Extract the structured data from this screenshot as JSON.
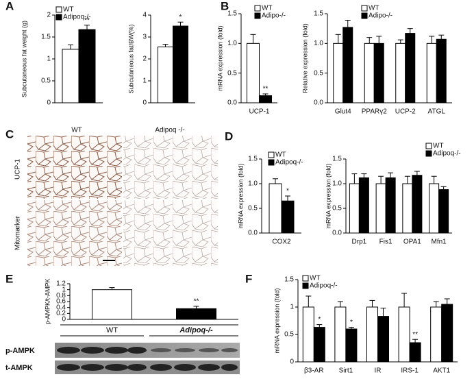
{
  "chart_data": [
    {
      "type": "bar",
      "panel_label": "A",
      "ylabel": "Subcutaneous fat weight (g)",
      "categories": [
        null
      ],
      "series": [
        {
          "name": "WT",
          "color": "#ffffff",
          "values": [
            1.22
          ],
          "errors": [
            0.1
          ]
        },
        {
          "name": "Adipoq-/-",
          "color": "#000000",
          "values": [
            1.67
          ],
          "errors": [
            0.1
          ]
        }
      ],
      "significance": [
        "**"
      ],
      "ylim": [
        0,
        2
      ],
      "yticks": [
        0,
        0.5,
        1,
        1.5,
        2
      ]
    },
    {
      "type": "bar",
      "ylabel": "Subcutaneous fat/BW(%)",
      "categories": [
        null
      ],
      "series": [
        {
          "color": "#ffffff",
          "values": [
            2.55
          ],
          "errors": [
            0.12
          ]
        },
        {
          "color": "#000000",
          "values": [
            3.5
          ],
          "errors": [
            0.18
          ]
        }
      ],
      "significance": [
        "*"
      ],
      "ylim": [
        0,
        4
      ],
      "yticks": [
        0,
        1,
        2,
        3,
        4
      ]
    },
    {
      "type": "bar",
      "panel_label": "B",
      "ylabel": "mRNA expression (fold)",
      "categories": [
        "UCP-1"
      ],
      "series": [
        {
          "name": "WT",
          "color": "#ffffff",
          "values": [
            1.0
          ],
          "errors": [
            0.15
          ]
        },
        {
          "name": "Adipo-/-",
          "color": "#000000",
          "values": [
            0.12
          ],
          "errors": [
            0.03
          ]
        }
      ],
      "significance": [
        "**"
      ],
      "ylim": [
        0,
        1.5
      ],
      "yticks": [
        {
          "value": 0,
          "label": "0.0"
        },
        {
          "value": 0.5,
          "label": "0.5"
        },
        {
          "value": 1,
          "label": "1.0"
        },
        {
          "value": 1.5,
          "label": "1.5"
        }
      ]
    },
    {
      "type": "bar",
      "ylabel": "Relative expression (fold)",
      "categories": [
        "Glut4",
        "PPARγ2",
        "UCP-2",
        "ATGL"
      ],
      "series": [
        {
          "name": "WT",
          "color": "#ffffff",
          "values": [
            1,
            1,
            1,
            1
          ],
          "errors": [
            0.15,
            0.1,
            0.06,
            0.12
          ]
        },
        {
          "name": "Adipo-/-",
          "color": "#000000",
          "values": [
            1.27,
            1,
            1.17,
            1.07
          ],
          "errors": [
            0.12,
            0.12,
            0.08,
            0.07
          ]
        }
      ],
      "ylim": [
        0,
        1.5
      ],
      "yticks": [
        {
          "value": 0,
          "label": "0.0"
        },
        {
          "value": 0.5,
          "label": "0.5"
        },
        {
          "value": 1,
          "label": "1.0"
        },
        {
          "value": 1.5,
          "label": "1.5"
        }
      ]
    },
    {
      "type": "bar",
      "panel_label": "D",
      "ylabel": "mRNA expression (fold)",
      "categories": [
        "COX2"
      ],
      "series": [
        {
          "name": "WT",
          "color": "#ffffff",
          "values": [
            1.0
          ],
          "errors": [
            0.1
          ]
        },
        {
          "name": "Adipoq-/-",
          "color": "#000000",
          "values": [
            0.65
          ],
          "errors": [
            0.1
          ]
        }
      ],
      "significance": [
        "*"
      ],
      "ylim": [
        0,
        1.5
      ],
      "yticks": [
        {
          "value": 0,
          "label": "0.0"
        },
        {
          "value": 0.5,
          "label": "0.5"
        },
        {
          "value": 1,
          "label": "1.0"
        },
        {
          "value": 1.5,
          "label": "1.5"
        }
      ]
    },
    {
      "type": "bar",
      "ylabel": "mRNA expression (fold)",
      "categories": [
        "Drp1",
        "Fis1",
        "OPA1",
        "Mfn1"
      ],
      "series": [
        {
          "name": "WT",
          "color": "#ffffff",
          "values": [
            1,
            1,
            1,
            1
          ],
          "errors": [
            0.2,
            0.15,
            0.15,
            0.15
          ]
        },
        {
          "name": "Adipoq-/-",
          "color": "#000000",
          "values": [
            1.12,
            1.12,
            1.17,
            0.88
          ],
          "errors": [
            0.08,
            0.1,
            0.08,
            0.06
          ]
        }
      ],
      "ylim": [
        0,
        1.5
      ],
      "yticks": [
        {
          "value": 0,
          "label": "0.0"
        },
        {
          "value": 0.5,
          "label": "0.5"
        },
        {
          "value": 1,
          "label": "1.0"
        },
        {
          "value": 1.5,
          "label": "1.5"
        }
      ]
    },
    {
      "type": "bar",
      "panel_label": "E",
      "ylabel": "p-AMPK/t-AMPK",
      "categories": [
        "WT",
        "Adipoq-/-"
      ],
      "values": [
        1.0,
        0.36
      ],
      "errors": [
        0.07,
        0.08
      ],
      "colors": [
        "#ffffff",
        "#000000"
      ],
      "significance": [
        null,
        "**"
      ],
      "ylim": [
        0,
        1.2
      ],
      "yticks": [
        0,
        0.2,
        0.4,
        0.6,
        0.8,
        1,
        1.2
      ]
    },
    {
      "type": "bar",
      "panel_label": "F",
      "ylabel": "mRNA expression (fold)",
      "categories": [
        "β3-AR",
        "Sirt1",
        "IR",
        "IRS-1",
        "AKT1"
      ],
      "series": [
        {
          "name": "WT",
          "color": "#ffffff",
          "values": [
            1,
            1,
            1,
            1,
            1
          ],
          "errors": [
            0.2,
            0.1,
            0.12,
            0.25,
            0.1
          ]
        },
        {
          "name": "Adipoq-/-",
          "color": "#000000",
          "values": [
            0.63,
            0.6,
            0.83,
            0.35,
            1.05
          ],
          "errors": [
            0.05,
            0.03,
            0.15,
            0.06,
            0.1
          ]
        }
      ],
      "significance": [
        "*",
        "*",
        null,
        "**",
        null
      ],
      "ylim": [
        0,
        1.5
      ],
      "yticks": [
        0,
        0.5,
        1,
        1.5
      ]
    }
  ],
  "image_panel": {
    "label": "C",
    "columns": [
      "WT",
      "Adipoq -/-"
    ],
    "rows": [
      "UCP-1",
      "Mitomarker"
    ]
  },
  "blot": {
    "rows": [
      "p-AMPK",
      "t-AMPK"
    ]
  }
}
